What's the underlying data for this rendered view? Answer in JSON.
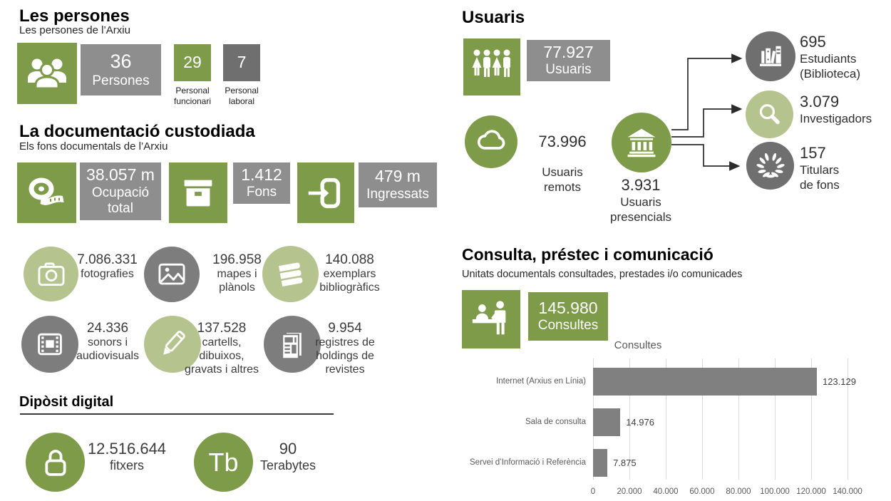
{
  "colors": {
    "green": "#7d9b49",
    "green_light": "#b5c48e",
    "gray_box": "#8e8e8e",
    "gray_box_dark": "#6f6f6f",
    "gray_circle": "#7d7d7d",
    "bar": "#808080",
    "grid": "#d9d9d9"
  },
  "persones": {
    "title": "Les persones",
    "subtitle": "Les persones de l’Arxiu",
    "total_value": "36",
    "total_label": "Persones",
    "funcionari_value": "29",
    "funcionari_label": "Personal\nfuncionari",
    "laboral_value": "7",
    "laboral_label": "Personal\nlaboral"
  },
  "documentacio": {
    "title": "La documentació custodiada",
    "subtitle": "Els fons documentals de l’Arxiu",
    "ocupacio_value": "38.057 m",
    "ocupacio_label": "Ocupació\ntotal",
    "fons_value": "1.412",
    "fons_label": "Fons",
    "ingressats_value": "479 m",
    "ingressats_label": "Ingressats",
    "stats": [
      {
        "value": "7.086.331",
        "label": "fotografies"
      },
      {
        "value": "196.958",
        "label": "mapes i\nplànols"
      },
      {
        "value": "140.088",
        "label": "exemplars\nbibliogràfics"
      },
      {
        "value": "24.336",
        "label": "sonors i\naudiovisuals"
      },
      {
        "value": "137.528",
        "label": "cartells,\ndibuixos,\ngravats i altres"
      },
      {
        "value": "9.954",
        "label": "registres de\nholdings de\nrevistes"
      }
    ]
  },
  "diposit": {
    "title": "Dipòsit digital",
    "fitxers_value": "12.516.644",
    "fitxers_label": "fitxers",
    "tb_badge": "Tb",
    "terabytes_value": "90",
    "terabytes_label": "Terabytes"
  },
  "usuaris": {
    "title": "Usuaris",
    "total_value": "77.927",
    "total_label": "Usuaris",
    "remots_value": "73.996",
    "remots_label": "Usuaris\nremots",
    "presencials_value": "3.931",
    "presencials_label": "Usuaris\npresencials",
    "estudiants_value": "695",
    "estudiants_label": "Estudiants\n(Biblioteca)",
    "investigadors_value": "3.079",
    "investigadors_label": "Investigadors",
    "titulars_value": "157",
    "titulars_label": "Titulars\nde fons"
  },
  "consulta": {
    "title": "Consulta, préstec i comunicació",
    "subtitle": "Unitats documentals consultades, prestades i/o comunicades",
    "consultes_value": "145.980",
    "consultes_label": "Consultes"
  },
  "chart_data": {
    "type": "bar",
    "orientation": "horizontal",
    "title": "Consultes",
    "categories": [
      "Internet (Arxius en Línia)",
      "Sala de consulta",
      "Servei d’Informació i Referència"
    ],
    "values": [
      123129,
      14976,
      7875
    ],
    "value_labels": [
      "123.129",
      "14.976",
      "7.875"
    ],
    "xlim": [
      0,
      140000
    ],
    "x_ticks": [
      {
        "value": 0,
        "label": "0"
      },
      {
        "value": 20000,
        "label": "20.000"
      },
      {
        "value": 40000,
        "label": "40.000"
      },
      {
        "value": 60000,
        "label": "60.000"
      },
      {
        "value": 80000,
        "label": "80.000"
      },
      {
        "value": 100000,
        "label": "100.000"
      },
      {
        "value": 120000,
        "label": "120.000"
      },
      {
        "value": 140000,
        "label": "140.000"
      }
    ],
    "bar_color": "#808080",
    "grid": true,
    "legend_position": "none"
  }
}
